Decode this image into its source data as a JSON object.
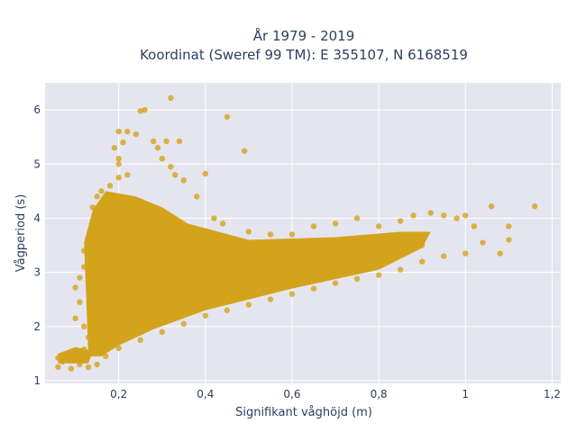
{
  "chart_data": {
    "type": "scatter",
    "title_line1": "År 1979 - 2019",
    "title_line2": "Koordinat (Sweref 99 TM): E 355107, N 6168519",
    "xlabel": "Signifikant våghöjd (m)",
    "ylabel": "Vågperiod (s)",
    "xlim": [
      0.03,
      1.22
    ],
    "ylim": [
      0.95,
      6.5
    ],
    "x_ticks": [
      0.2,
      0.4,
      0.6,
      0.8,
      1,
      1.2
    ],
    "x_tick_labels": [
      "0,2",
      "0,4",
      "0,6",
      "0,8",
      "1",
      "1,2"
    ],
    "y_ticks": [
      1,
      2,
      3,
      4,
      5,
      6
    ],
    "y_tick_labels": [
      "1",
      "2",
      "3",
      "4",
      "5",
      "6"
    ],
    "grid": true,
    "legend": "none",
    "marker_color": "#d4a31c",
    "plot_background": "#e5e5ef",
    "series": [
      {
        "points": [
          [
            0.06,
            1.42
          ],
          [
            0.06,
            1.25
          ],
          [
            0.07,
            1.35
          ],
          [
            0.08,
            1.5
          ],
          [
            0.09,
            1.22
          ],
          [
            0.1,
            1.55
          ],
          [
            0.11,
            1.3
          ],
          [
            0.12,
            1.58
          ],
          [
            0.13,
            1.25
          ],
          [
            0.14,
            1.6
          ],
          [
            0.13,
            1.8
          ],
          [
            0.12,
            2.0
          ],
          [
            0.1,
            2.15
          ],
          [
            0.11,
            2.45
          ],
          [
            0.1,
            2.72
          ],
          [
            0.11,
            2.9
          ],
          [
            0.12,
            3.1
          ],
          [
            0.12,
            3.4
          ],
          [
            0.13,
            3.6
          ],
          [
            0.14,
            3.8
          ],
          [
            0.15,
            4.0
          ],
          [
            0.14,
            4.2
          ],
          [
            0.15,
            4.4
          ],
          [
            0.16,
            4.5
          ],
          [
            0.18,
            4.6
          ],
          [
            0.2,
            4.75
          ],
          [
            0.22,
            4.8
          ],
          [
            0.2,
            5.0
          ],
          [
            0.2,
            5.1
          ],
          [
            0.19,
            5.3
          ],
          [
            0.21,
            5.4
          ],
          [
            0.22,
            5.6
          ],
          [
            0.2,
            5.6
          ],
          [
            0.24,
            5.55
          ],
          [
            0.25,
            5.98
          ],
          [
            0.26,
            6.0
          ],
          [
            0.32,
            6.22
          ],
          [
            0.28,
            5.42
          ],
          [
            0.31,
            5.42
          ],
          [
            0.34,
            5.42
          ],
          [
            0.29,
            5.3
          ],
          [
            0.3,
            5.1
          ],
          [
            0.32,
            4.95
          ],
          [
            0.33,
            4.8
          ],
          [
            0.35,
            4.7
          ],
          [
            0.38,
            4.4
          ],
          [
            0.4,
            4.82
          ],
          [
            0.45,
            5.87
          ],
          [
            0.49,
            5.24
          ],
          [
            0.42,
            4.0
          ],
          [
            0.44,
            3.9
          ],
          [
            0.5,
            3.75
          ],
          [
            0.55,
            3.7
          ],
          [
            0.6,
            3.7
          ],
          [
            0.65,
            3.85
          ],
          [
            0.7,
            3.9
          ],
          [
            0.75,
            4.0
          ],
          [
            0.8,
            3.85
          ],
          [
            0.85,
            3.95
          ],
          [
            0.88,
            4.05
          ],
          [
            0.92,
            4.1
          ],
          [
            0.95,
            4.05
          ],
          [
            0.98,
            4.0
          ],
          [
            1.0,
            4.05
          ],
          [
            1.02,
            3.85
          ],
          [
            1.04,
            3.55
          ],
          [
            1.06,
            4.22
          ],
          [
            1.08,
            3.35
          ],
          [
            1.1,
            3.6
          ],
          [
            1.1,
            3.85
          ],
          [
            1.16,
            4.22
          ],
          [
            1.0,
            3.35
          ],
          [
            0.95,
            3.3
          ],
          [
            0.9,
            3.2
          ],
          [
            0.85,
            3.05
          ],
          [
            0.8,
            2.95
          ],
          [
            0.75,
            2.88
          ],
          [
            0.7,
            2.8
          ],
          [
            0.65,
            2.7
          ],
          [
            0.6,
            2.6
          ],
          [
            0.55,
            2.5
          ],
          [
            0.5,
            2.4
          ],
          [
            0.45,
            2.3
          ],
          [
            0.4,
            2.2
          ],
          [
            0.35,
            2.05
          ],
          [
            0.3,
            1.9
          ],
          [
            0.25,
            1.75
          ],
          [
            0.2,
            1.6
          ],
          [
            0.17,
            1.45
          ],
          [
            0.15,
            1.3
          ],
          [
            0.3,
            3.0
          ],
          [
            0.4,
            3.1
          ],
          [
            0.5,
            3.0
          ],
          [
            0.6,
            3.05
          ],
          [
            0.7,
            3.15
          ],
          [
            0.8,
            3.3
          ],
          [
            0.9,
            3.5
          ],
          [
            0.25,
            3.5
          ],
          [
            0.2,
            2.5
          ],
          [
            0.3,
            2.6
          ],
          [
            0.35,
            3.8
          ],
          [
            0.45,
            2.7
          ]
        ]
      }
    ]
  }
}
